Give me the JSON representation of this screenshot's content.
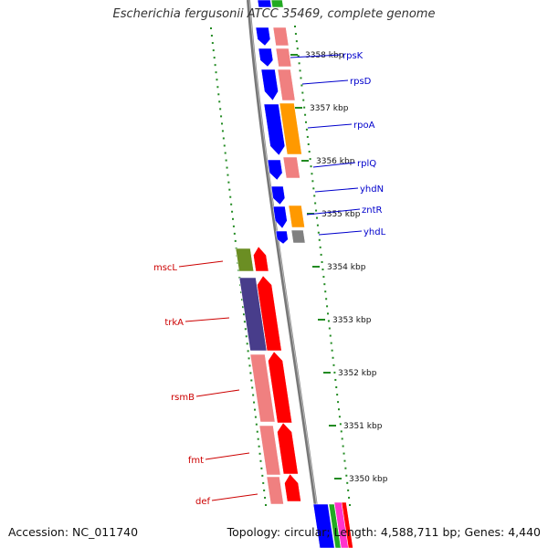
{
  "title": "Escherichia fergusonii ATCC 35469, complete genome",
  "footer": {
    "accession": "Accession: NC_011740",
    "topology": "Topology: circular; Length: 4,588,711 bp; Genes: 4,440"
  },
  "colors": {
    "red": "#ff0000",
    "pink": "#f08080",
    "blue": "#0000ff",
    "orange": "#ff9900",
    "olive": "#6b8e23",
    "purple": "#483d8b",
    "gray": "#808080",
    "green": "#22aa22",
    "magenta": "#ff33cc",
    "right_label": "#0000cc",
    "left_label": "#cc0000",
    "tick": "#228b22"
  },
  "ticks": [
    "3358 kbp",
    "3357 kbp",
    "3356 kbp",
    "3355 kbp",
    "3354 kbp",
    "3353 kbp",
    "3352 kbp",
    "3351 kbp",
    "3350 kbp"
  ],
  "right_genes": [
    "rpsK",
    "rpsD",
    "rpoA",
    "rplQ",
    "yhdN",
    "zntR",
    "yhdL"
  ],
  "left_genes": [
    "mscL",
    "trkA",
    "rsmB",
    "fmt",
    "def"
  ]
}
